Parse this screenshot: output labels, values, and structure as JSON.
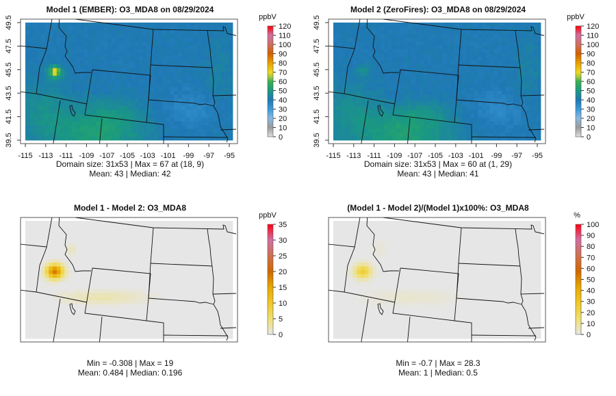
{
  "chart_data": [
    {
      "type": "heatmap",
      "title": "Model 1 (EMBER): O3_MDA8 on 08/29/2024",
      "colorbar": {
        "unit": "ppbV",
        "ticks": [
          "0",
          "10",
          "20",
          "30",
          "40",
          "50",
          "60",
          "70",
          "80",
          "90",
          "100",
          "110",
          "120"
        ],
        "range": [
          0,
          120
        ]
      },
      "x_ticks": [
        "-115",
        "-113",
        "-111",
        "-109",
        "-107",
        "-105",
        "-103",
        "-101",
        "-99",
        "-97",
        "-95"
      ],
      "y_ticks": [
        "39.5",
        "41.5",
        "43.5",
        "45.5",
        "47.5",
        "49.5"
      ],
      "stats_line1": "Domain size: 31x53 | Max = 67 at (18, 9)",
      "stats_line2": "Mean: 43 |  Median: 42",
      "grid": {
        "rows": 31,
        "cols": 53,
        "max": 67,
        "mean": 43,
        "median": 42,
        "hotspot_amp": 25
      }
    },
    {
      "type": "heatmap",
      "title": "Model 2 (ZeroFires): O3_MDA8 on 08/29/2024",
      "colorbar": {
        "unit": "ppbV",
        "ticks": [
          "0",
          "10",
          "20",
          "30",
          "40",
          "50",
          "60",
          "70",
          "80",
          "90",
          "100",
          "110",
          "120"
        ],
        "range": [
          0,
          120
        ]
      },
      "x_ticks": [
        "-115",
        "-113",
        "-111",
        "-109",
        "-107",
        "-105",
        "-103",
        "-101",
        "-99",
        "-97",
        "-95"
      ],
      "y_ticks": [
        "39.5",
        "41.5",
        "43.5",
        "45.5",
        "47.5",
        "49.5"
      ],
      "stats_line1": "Domain size: 31x53 | Max = 60 at (1, 29)",
      "stats_line2": "Mean: 43 |  Median: 41",
      "grid": {
        "rows": 31,
        "cols": 53,
        "max": 60,
        "mean": 43,
        "median": 41,
        "hotspot_amp": 8
      }
    },
    {
      "type": "heatmap",
      "title": "Model 1 - Model 2: O3_MDA8",
      "colorbar": {
        "unit": "ppbV",
        "ticks": [
          "0",
          "5",
          "10",
          "15",
          "20",
          "25",
          "30",
          "35"
        ],
        "range": [
          0,
          35
        ]
      },
      "stats_line1": "Min = -0.308 | Max = 19",
      "stats_line2": "Mean: 0.484 |  Median: 0.196",
      "grid": {
        "rows": 31,
        "cols": 53,
        "min": -0.308,
        "max": 19,
        "mean": 0.484,
        "median": 0.196
      }
    },
    {
      "type": "heatmap",
      "title": "(Model 1 - Model 2)/(Model 1)x100%: O3_MDA8",
      "colorbar": {
        "unit": "%",
        "ticks": [
          "0",
          "10",
          "20",
          "30",
          "40",
          "50",
          "60",
          "70",
          "80",
          "90",
          "100"
        ],
        "range": [
          0,
          100
        ]
      },
      "stats_line1": "Min = -0.7 | Max = 28.3",
      "stats_line2": "Mean: 1 |  Median: 0.5",
      "grid": {
        "rows": 31,
        "cols": 53,
        "min": -0.7,
        "max": 28.3,
        "mean": 1,
        "median": 0.5
      }
    }
  ],
  "colors": {
    "abs_palette": [
      [
        0,
        "#e0e0e0"
      ],
      [
        10,
        "#9a9a9a"
      ],
      [
        20,
        "#8ab8e0"
      ],
      [
        30,
        "#3a9ad8"
      ],
      [
        40,
        "#1f78b4"
      ],
      [
        50,
        "#1a9a80"
      ],
      [
        60,
        "#3ab050"
      ],
      [
        65,
        "#a8c840"
      ],
      [
        70,
        "#f0d820"
      ],
      [
        80,
        "#e8a000"
      ],
      [
        90,
        "#d06000"
      ],
      [
        100,
        "#d07060"
      ],
      [
        110,
        "#d070a0"
      ],
      [
        120,
        "#ff0000"
      ]
    ],
    "diff_palette": [
      [
        0,
        "#e6e6e6"
      ],
      [
        5,
        "#f0e070"
      ],
      [
        10,
        "#f0c828"
      ],
      [
        15,
        "#e8a800"
      ],
      [
        20,
        "#d06800"
      ],
      [
        25,
        "#d07050"
      ],
      [
        30,
        "#d070a0"
      ],
      [
        35,
        "#ff0010"
      ]
    ]
  }
}
